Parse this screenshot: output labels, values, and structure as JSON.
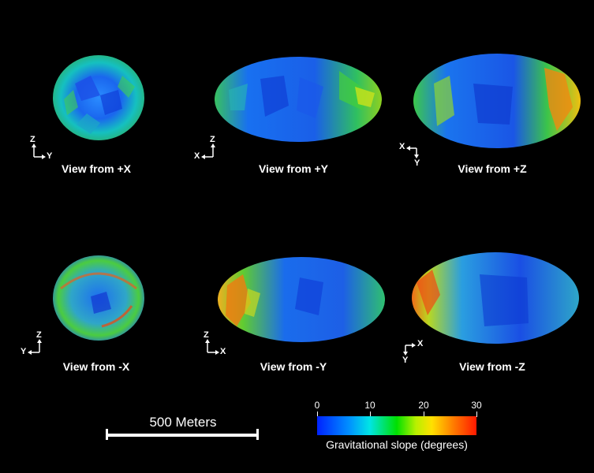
{
  "views": [
    {
      "label": "View from +X",
      "axes": {
        "up": "Z",
        "side": "Y"
      }
    },
    {
      "label": "View from +Y",
      "axes": {
        "up": "Z",
        "side": "X"
      }
    },
    {
      "label": "View from +Z",
      "axes": {
        "up": "Y",
        "side": "X"
      }
    },
    {
      "label": "View from -X",
      "axes": {
        "up": "Z",
        "side": "Y"
      }
    },
    {
      "label": "View from -Y",
      "axes": {
        "up": "Z",
        "side": "X"
      }
    },
    {
      "label": "View from -Z",
      "axes": {
        "up": "Y",
        "side": "X"
      }
    }
  ],
  "scale_bar": {
    "label": "500 Meters"
  },
  "colorbar": {
    "ticks": [
      "0",
      "10",
      "20",
      "30"
    ],
    "caption": "Gravitational slope (degrees)",
    "colors": [
      "#0022ff",
      "#0090ff",
      "#00e5e5",
      "#00e000",
      "#b8f000",
      "#ffe000",
      "#ff8000",
      "#ff1800"
    ]
  }
}
